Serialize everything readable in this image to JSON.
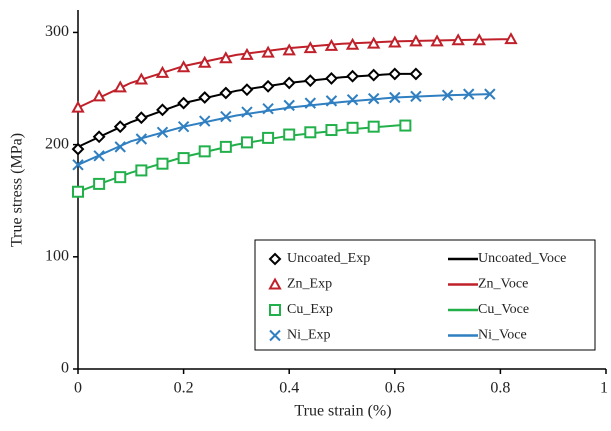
{
  "chart_data": {
    "type": "scatter",
    "x_label": "True strain (%)",
    "y_label": "True stress (MPa)",
    "xlim": [
      0,
      1
    ],
    "xticks": [
      0,
      0.2,
      0.4,
      0.6,
      0.8,
      1
    ],
    "ylim": [
      0,
      320
    ],
    "yticks": [
      0,
      100,
      200,
      300
    ],
    "legend": "lower right",
    "series": [
      {
        "name": "Uncoated_Exp",
        "style": "markers",
        "marker": "diamond",
        "color": "#000000",
        "x": [
          0,
          0.04,
          0.08,
          0.12,
          0.16,
          0.2,
          0.24,
          0.28,
          0.32,
          0.36,
          0.4,
          0.44,
          0.48,
          0.52,
          0.56,
          0.6,
          0.64
        ],
        "values": [
          196,
          207,
          216,
          224,
          231,
          237,
          242,
          246,
          249,
          252,
          255,
          257,
          259,
          261,
          262,
          263,
          263
        ]
      },
      {
        "name": "Zn_Exp",
        "style": "markers",
        "marker": "triangle",
        "color": "#c0202a",
        "x": [
          0,
          0.04,
          0.08,
          0.12,
          0.16,
          0.2,
          0.24,
          0.28,
          0.32,
          0.36,
          0.4,
          0.44,
          0.48,
          0.52,
          0.56,
          0.6,
          0.64,
          0.68,
          0.72,
          0.76,
          0.82
        ],
        "values": [
          233,
          243,
          251,
          258,
          264,
          269,
          273,
          277,
          280,
          282,
          284,
          286,
          288,
          289,
          290,
          291,
          292,
          292,
          293,
          293,
          294
        ]
      },
      {
        "name": "Cu_Exp",
        "style": "markers",
        "marker": "square",
        "color": "#22b04b",
        "x": [
          0,
          0.04,
          0.08,
          0.12,
          0.16,
          0.2,
          0.24,
          0.28,
          0.32,
          0.36,
          0.4,
          0.44,
          0.48,
          0.52,
          0.56,
          0.62
        ],
        "values": [
          158,
          165,
          171,
          177,
          183,
          188,
          194,
          198,
          202,
          206,
          209,
          211,
          213,
          215,
          216,
          217
        ]
      },
      {
        "name": "Ni_Exp",
        "style": "markers",
        "marker": "x",
        "color": "#2f7fc1",
        "x": [
          0,
          0.04,
          0.08,
          0.12,
          0.16,
          0.2,
          0.24,
          0.28,
          0.32,
          0.36,
          0.4,
          0.44,
          0.48,
          0.52,
          0.56,
          0.6,
          0.64,
          0.7,
          0.74,
          0.78
        ],
        "values": [
          182,
          190,
          198,
          205,
          211,
          216,
          221,
          225,
          229,
          232,
          235,
          237,
          239,
          240,
          241,
          242,
          243,
          244,
          245,
          245
        ]
      },
      {
        "name": "Uncoated_Voce",
        "style": "line",
        "color": "#000000",
        "x": [
          0,
          0.1,
          0.2,
          0.3,
          0.4,
          0.5,
          0.6,
          0.64
        ],
        "values": [
          198,
          220,
          237,
          248,
          255,
          260,
          263,
          263
        ]
      },
      {
        "name": "Zn_Voce",
        "style": "line",
        "color": "#c0202a",
        "x": [
          0,
          0.1,
          0.2,
          0.3,
          0.4,
          0.5,
          0.6,
          0.7,
          0.8,
          0.82
        ],
        "values": [
          233,
          255,
          270,
          280,
          286,
          290,
          292,
          293,
          294,
          294
        ]
      },
      {
        "name": "Cu_Voce",
        "style": "line",
        "color": "#22b04b",
        "x": [
          0,
          0.1,
          0.2,
          0.3,
          0.4,
          0.5,
          0.6,
          0.63
        ],
        "values": [
          158,
          175,
          189,
          200,
          208,
          213,
          217,
          218
        ]
      },
      {
        "name": "Ni_Voce",
        "style": "line",
        "color": "#2f7fc1",
        "x": [
          0,
          0.1,
          0.2,
          0.3,
          0.4,
          0.5,
          0.6,
          0.7,
          0.78
        ],
        "values": [
          182,
          203,
          216,
          226,
          233,
          238,
          242,
          244,
          245
        ]
      }
    ]
  }
}
